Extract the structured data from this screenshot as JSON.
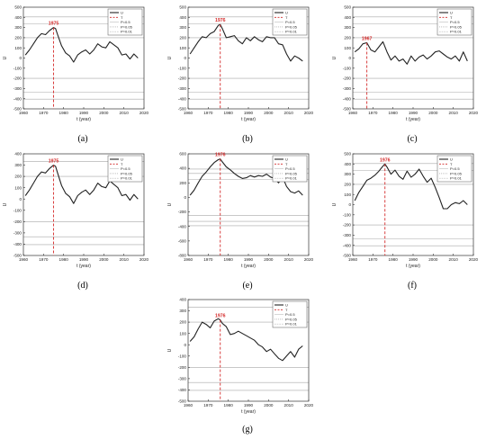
{
  "chart_data": [
    {
      "panel": "(a)",
      "type": "line",
      "xlabel": "t (year)",
      "ylabel": "U",
      "xlim": [
        1960,
        2020
      ],
      "ylim": [
        -500,
        500
      ],
      "xticks": [
        1960,
        1970,
        1980,
        1990,
        2000,
        2010,
        2020
      ],
      "yticks": [
        -500,
        -400,
        -300,
        -200,
        -100,
        0,
        100,
        200,
        300,
        400,
        500
      ],
      "legend": [
        "U",
        "T",
        "P=0.5",
        "P=0.05",
        "P=0.01"
      ],
      "legend_position": "top-right",
      "threshold_levels": [
        200,
        334,
        404
      ],
      "change_point": {
        "year": 1975,
        "label": "1975"
      },
      "series": [
        {
          "name": "U",
          "x": [
            1961,
            1963,
            1965,
            1967,
            1969,
            1971,
            1973,
            1975,
            1976,
            1977,
            1979,
            1981,
            1983,
            1985,
            1987,
            1989,
            1991,
            1993,
            1995,
            1997,
            1999,
            2001,
            2003,
            2005,
            2007,
            2009,
            2011,
            2013,
            2015,
            2017
          ],
          "values": [
            30,
            80,
            140,
            200,
            240,
            230,
            270,
            300,
            290,
            230,
            120,
            50,
            20,
            -40,
            30,
            60,
            80,
            40,
            80,
            140,
            110,
            100,
            160,
            130,
            100,
            30,
            40,
            -10,
            40,
            0
          ]
        }
      ]
    },
    {
      "panel": "(b)",
      "type": "line",
      "xlabel": "t (year)",
      "ylabel": "U",
      "xlim": [
        1960,
        2020
      ],
      "ylim": [
        -500,
        500
      ],
      "xticks": [
        1960,
        1970,
        1980,
        1990,
        2000,
        2010,
        2020
      ],
      "yticks": [
        -500,
        -400,
        -300,
        -200,
        -100,
        0,
        100,
        200,
        300,
        400,
        500
      ],
      "legend": [
        "U",
        "T",
        "P=0.5",
        "P=0.05",
        "P=0.01"
      ],
      "legend_position": "top-right",
      "threshold_levels": [
        200,
        334,
        404
      ],
      "change_point": {
        "year": 1976,
        "label": "1976"
      },
      "series": [
        {
          "name": "U",
          "x": [
            1961,
            1963,
            1965,
            1967,
            1969,
            1971,
            1973,
            1975,
            1976,
            1977,
            1979,
            1981,
            1983,
            1985,
            1987,
            1989,
            1991,
            1993,
            1995,
            1997,
            1999,
            2001,
            2003,
            2005,
            2007,
            2009,
            2011,
            2013,
            2015,
            2017
          ],
          "values": [
            40,
            100,
            160,
            210,
            200,
            240,
            260,
            320,
            330,
            290,
            200,
            210,
            220,
            170,
            140,
            200,
            170,
            210,
            180,
            160,
            210,
            200,
            200,
            140,
            130,
            40,
            -30,
            20,
            0,
            -30
          ]
        }
      ]
    },
    {
      "panel": "(c)",
      "type": "line",
      "xlabel": "t (year)",
      "ylabel": "U",
      "xlim": [
        1960,
        2020
      ],
      "ylim": [
        -500,
        500
      ],
      "xticks": [
        1960,
        1970,
        1980,
        1990,
        2000,
        2010,
        2020
      ],
      "yticks": [
        -500,
        -400,
        -300,
        -200,
        -100,
        0,
        100,
        200,
        300,
        400,
        500
      ],
      "legend": [
        "U",
        "T",
        "P=0.5",
        "P=0.05",
        "P=0.01"
      ],
      "legend_position": "top-right",
      "threshold_levels": [
        200,
        334,
        404
      ],
      "change_point": {
        "year": 1967,
        "label": "1967"
      },
      "series": [
        {
          "name": "U",
          "x": [
            1961,
            1963,
            1965,
            1967,
            1969,
            1971,
            1973,
            1975,
            1977,
            1979,
            1981,
            1983,
            1985,
            1987,
            1989,
            1991,
            1993,
            1995,
            1997,
            1999,
            2001,
            2003,
            2005,
            2007,
            2009,
            2011,
            2013,
            2015,
            2017
          ],
          "values": [
            60,
            90,
            140,
            150,
            80,
            60,
            110,
            160,
            60,
            -20,
            20,
            -30,
            -10,
            -60,
            20,
            -30,
            10,
            30,
            -10,
            20,
            60,
            70,
            40,
            10,
            -10,
            20,
            -30,
            60,
            -30
          ]
        }
      ]
    },
    {
      "panel": "(d)",
      "type": "line",
      "xlabel": "t (year)",
      "ylabel": "U",
      "xlim": [
        1960,
        2020
      ],
      "ylim": [
        -500,
        400
      ],
      "xticks": [
        1960,
        1970,
        1980,
        1990,
        2000,
        2010,
        2020
      ],
      "yticks": [
        -500,
        -400,
        -300,
        -200,
        -100,
        0,
        100,
        200,
        300,
        400
      ],
      "legend": [
        "U",
        "T",
        "P=0.5",
        "P=0.05",
        "P=0.01"
      ],
      "legend_position": "top-right",
      "threshold_levels": [
        200,
        334,
        404
      ],
      "change_point": {
        "year": 1975,
        "label": "1975"
      },
      "series": [
        {
          "name": "U",
          "x": [
            1961,
            1963,
            1965,
            1967,
            1969,
            1971,
            1973,
            1975,
            1976,
            1977,
            1979,
            1981,
            1983,
            1985,
            1987,
            1989,
            1991,
            1993,
            1995,
            1997,
            1999,
            2001,
            2003,
            2005,
            2007,
            2009,
            2011,
            2013,
            2015,
            2017
          ],
          "values": [
            30,
            80,
            140,
            200,
            240,
            230,
            270,
            300,
            290,
            230,
            120,
            50,
            20,
            -40,
            30,
            60,
            80,
            40,
            80,
            140,
            110,
            100,
            160,
            130,
            100,
            30,
            40,
            -10,
            40,
            0
          ]
        }
      ]
    },
    {
      "panel": "(e)",
      "type": "line",
      "xlabel": "t (year)",
      "ylabel": "U",
      "xlim": [
        1960,
        2020
      ],
      "ylim": [
        -800,
        600
      ],
      "xticks": [
        1960,
        1970,
        1980,
        1990,
        2000,
        2010,
        2020
      ],
      "yticks": [
        -800,
        -600,
        -400,
        -200,
        0,
        200,
        400,
        600
      ],
      "legend": [
        "U",
        "T",
        "P=0.5",
        "P=0.05",
        "P=0.01"
      ],
      "legend_position": "top-right",
      "threshold_levels": [
        250,
        330,
        390
      ],
      "change_point": {
        "year": 1976,
        "label": "1976"
      },
      "series": [
        {
          "name": "U",
          "x": [
            1961,
            1963,
            1965,
            1967,
            1969,
            1971,
            1973,
            1975,
            1976,
            1977,
            1979,
            1981,
            1983,
            1985,
            1987,
            1989,
            1991,
            1993,
            1995,
            1997,
            1999,
            2001,
            2003,
            2005,
            2007,
            2009,
            2011,
            2013,
            2015,
            2017
          ],
          "values": [
            30,
            100,
            200,
            290,
            350,
            420,
            480,
            520,
            530,
            490,
            420,
            380,
            330,
            290,
            260,
            270,
            300,
            280,
            300,
            290,
            320,
            280,
            260,
            200,
            280,
            150,
            80,
            60,
            90,
            30
          ]
        }
      ]
    },
    {
      "panel": "(f)",
      "type": "line",
      "xlabel": "t (year)",
      "ylabel": "U",
      "xlim": [
        1960,
        2020
      ],
      "ylim": [
        -500,
        500
      ],
      "xticks": [
        1960,
        1970,
        1980,
        1990,
        2000,
        2010,
        2020
      ],
      "yticks": [
        -500,
        -400,
        -300,
        -200,
        -100,
        0,
        100,
        200,
        300,
        400,
        500
      ],
      "legend": [
        "U",
        "T",
        "P=0.5",
        "P=0.05",
        "P=0.01"
      ],
      "legend_position": "top-right",
      "threshold_levels": [
        200,
        334,
        404
      ],
      "change_point": {
        "year": 1976,
        "label": "1976"
      },
      "series": [
        {
          "name": "U",
          "x": [
            1961,
            1963,
            1965,
            1967,
            1969,
            1971,
            1973,
            1975,
            1976,
            1977,
            1979,
            1981,
            1983,
            1985,
            1987,
            1989,
            1991,
            1993,
            1995,
            1997,
            1999,
            2001,
            2003,
            2005,
            2007,
            2009,
            2011,
            2013,
            2015,
            2017
          ],
          "values": [
            40,
            120,
            180,
            240,
            260,
            290,
            330,
            380,
            400,
            370,
            300,
            340,
            280,
            250,
            330,
            270,
            300,
            350,
            280,
            220,
            260,
            170,
            70,
            -40,
            -40,
            0,
            20,
            10,
            40,
            0
          ]
        }
      ]
    },
    {
      "panel": "(g)",
      "type": "line",
      "xlabel": "t (year)",
      "ylabel": "U",
      "xlim": [
        1960,
        2020
      ],
      "ylim": [
        -500,
        400
      ],
      "xticks": [
        1960,
        1970,
        1980,
        1990,
        2000,
        2010,
        2020
      ],
      "yticks": [
        -500,
        -400,
        -300,
        -200,
        -100,
        0,
        100,
        200,
        300,
        400
      ],
      "legend": [
        "U",
        "T",
        "P=0.5",
        "P=0.05",
        "P=0.01"
      ],
      "legend_position": "top-right",
      "threshold_levels": [
        200,
        334,
        404
      ],
      "change_point": {
        "year": 1976,
        "label": "1976"
      },
      "series": [
        {
          "name": "U",
          "x": [
            1961,
            1963,
            1965,
            1967,
            1969,
            1971,
            1973,
            1975,
            1976,
            1977,
            1979,
            1981,
            1983,
            1985,
            1987,
            1989,
            1991,
            1993,
            1995,
            1997,
            1999,
            2001,
            2003,
            2005,
            2007,
            2009,
            2011,
            2013,
            2015,
            2017
          ],
          "values": [
            30,
            70,
            140,
            200,
            180,
            150,
            210,
            230,
            220,
            190,
            160,
            90,
            100,
            120,
            100,
            80,
            60,
            40,
            0,
            -20,
            -60,
            -40,
            -80,
            -120,
            -140,
            -100,
            -60,
            -110,
            -40,
            -10
          ]
        }
      ]
    }
  ]
}
